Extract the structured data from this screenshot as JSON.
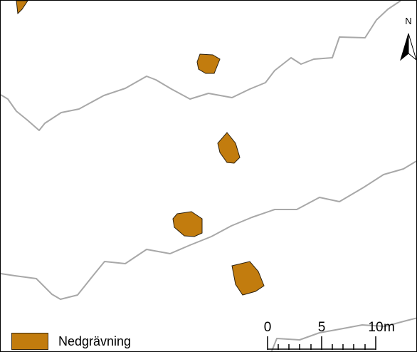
{
  "map": {
    "colors": {
      "feature_fill": "#c27c0e",
      "feature_stroke": "#2b2010",
      "contour_line": "#a8a8a8",
      "frame": "#000000"
    },
    "north_arrow": {
      "letter": "N",
      "icon": "north-arrow-icon"
    },
    "scale_bar": {
      "ticks": [
        "0",
        "5",
        "10"
      ],
      "unit": "m"
    },
    "legend": {
      "items": [
        {
          "label": "Nedgrävning",
          "color": "#c27c0e"
        }
      ]
    }
  }
}
